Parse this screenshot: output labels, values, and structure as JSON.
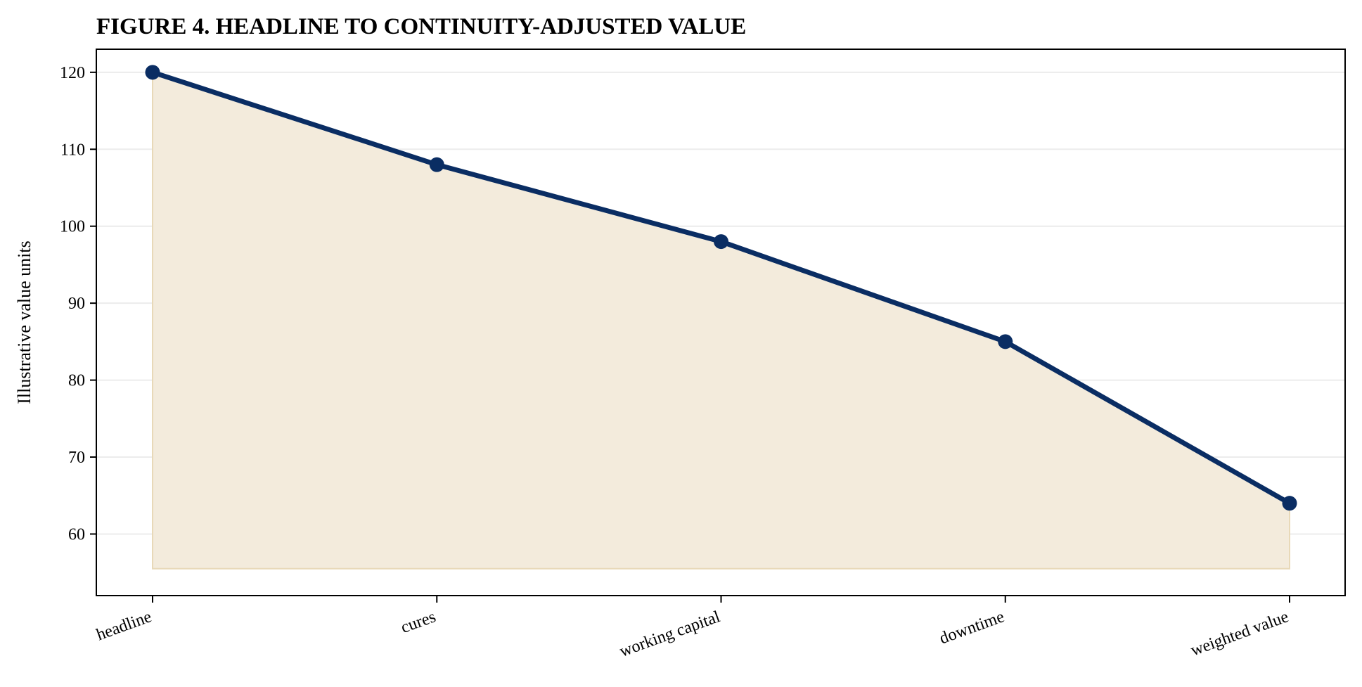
{
  "chart_data": {
    "type": "line",
    "title": "FIGURE 4. HEADLINE TO CONTINUITY-ADJUSTED VALUE",
    "xlabel": "",
    "ylabel": "Illustrative value units",
    "categories": [
      "headline",
      "cures",
      "working capital",
      "downtime",
      "weighted value"
    ],
    "series": [
      {
        "values": [
          120,
          108,
          98,
          85,
          64
        ]
      }
    ],
    "ylim": [
      52,
      123
    ],
    "yticks": [
      "60",
      "70",
      "80",
      "90",
      "100",
      "110",
      "120"
    ],
    "area_baseline": 55.5,
    "grid": true,
    "colors": {
      "line": "#0a2d63",
      "fill": "#f3ebdc",
      "fill_edge": "#e8d9b8",
      "grid": "#ececec"
    }
  }
}
